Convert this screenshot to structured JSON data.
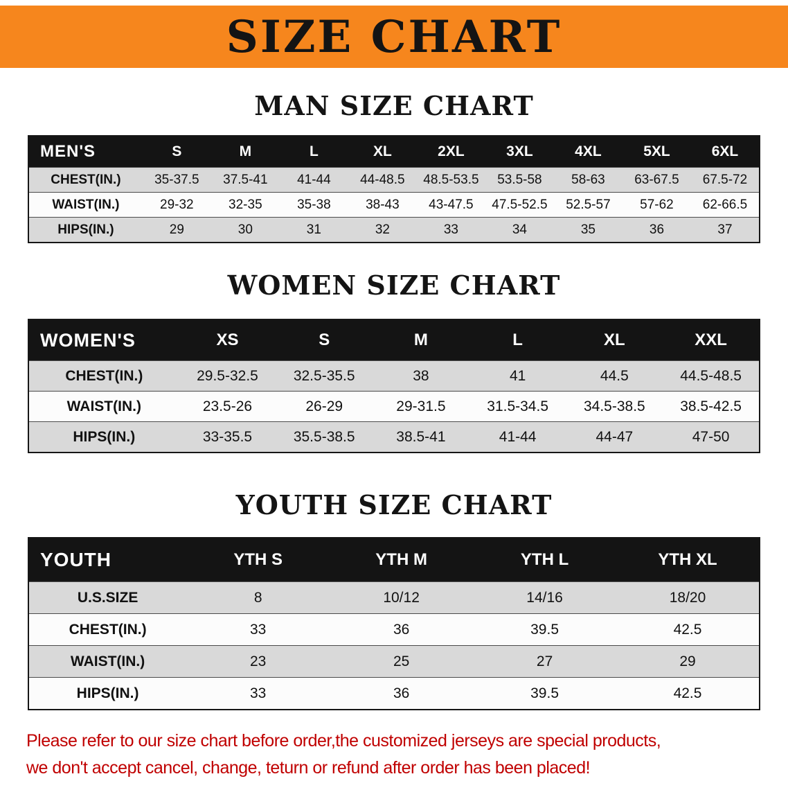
{
  "banner": {
    "title": "SIZE CHART"
  },
  "colors": {
    "banner_orange": "#F6861D",
    "header_black": "#141414",
    "row_gray": "#D9D9D9",
    "row_white": "#FCFCFC",
    "notice_red": "#C00000"
  },
  "sections": [
    {
      "id": "men",
      "heading": "MAN SIZE CHART",
      "table": {
        "header": [
          "MEN'S",
          "S",
          "M",
          "L",
          "XL",
          "2XL",
          "3XL",
          "4XL",
          "5XL",
          "6XL"
        ],
        "rows": [
          [
            "CHEST(IN.)",
            "35-37.5",
            "37.5-41",
            "41-44",
            "44-48.5",
            "48.5-53.5",
            "53.5-58",
            "58-63",
            "63-67.5",
            "67.5-72"
          ],
          [
            "WAIST(IN.)",
            "29-32",
            "32-35",
            "35-38",
            "38-43",
            "43-47.5",
            "47.5-52.5",
            "52.5-57",
            "57-62",
            "62-66.5"
          ],
          [
            "HIPS(IN.)",
            "29",
            "30",
            "31",
            "32",
            "33",
            "34",
            "35",
            "36",
            "37"
          ]
        ]
      }
    },
    {
      "id": "women",
      "heading": "WOMEN SIZE CHART",
      "table": {
        "header": [
          "WOMEN'S",
          "XS",
          "S",
          "M",
          "L",
          "XL",
          "XXL"
        ],
        "rows": [
          [
            "CHEST(IN.)",
            "29.5-32.5",
            "32.5-35.5",
            "38",
            "41",
            "44.5",
            "44.5-48.5"
          ],
          [
            "WAIST(IN.)",
            "23.5-26",
            "26-29",
            "29-31.5",
            "31.5-34.5",
            "34.5-38.5",
            "38.5-42.5"
          ],
          [
            "HIPS(IN.)",
            "33-35.5",
            "35.5-38.5",
            "38.5-41",
            "41-44",
            "44-47",
            "47-50"
          ]
        ]
      }
    },
    {
      "id": "youth",
      "heading": "YOUTH SIZE CHART",
      "table": {
        "header": [
          "YOUTH",
          "YTH S",
          "YTH M",
          "YTH L",
          "YTH XL"
        ],
        "rows": [
          [
            "U.S.SIZE",
            "8",
            "10/12",
            "14/16",
            "18/20"
          ],
          [
            "CHEST(IN.)",
            "33",
            "36",
            "39.5",
            "42.5"
          ],
          [
            "WAIST(IN.)",
            "23",
            "25",
            "27",
            "29"
          ],
          [
            "HIPS(IN.)",
            "33",
            "36",
            "39.5",
            "42.5"
          ]
        ]
      }
    }
  ],
  "notice": {
    "line1": "Please refer to our size chart before order,the customized jerseys are special products,",
    "line2": "we don't accept cancel, change, teturn or refund after order has been placed!"
  }
}
